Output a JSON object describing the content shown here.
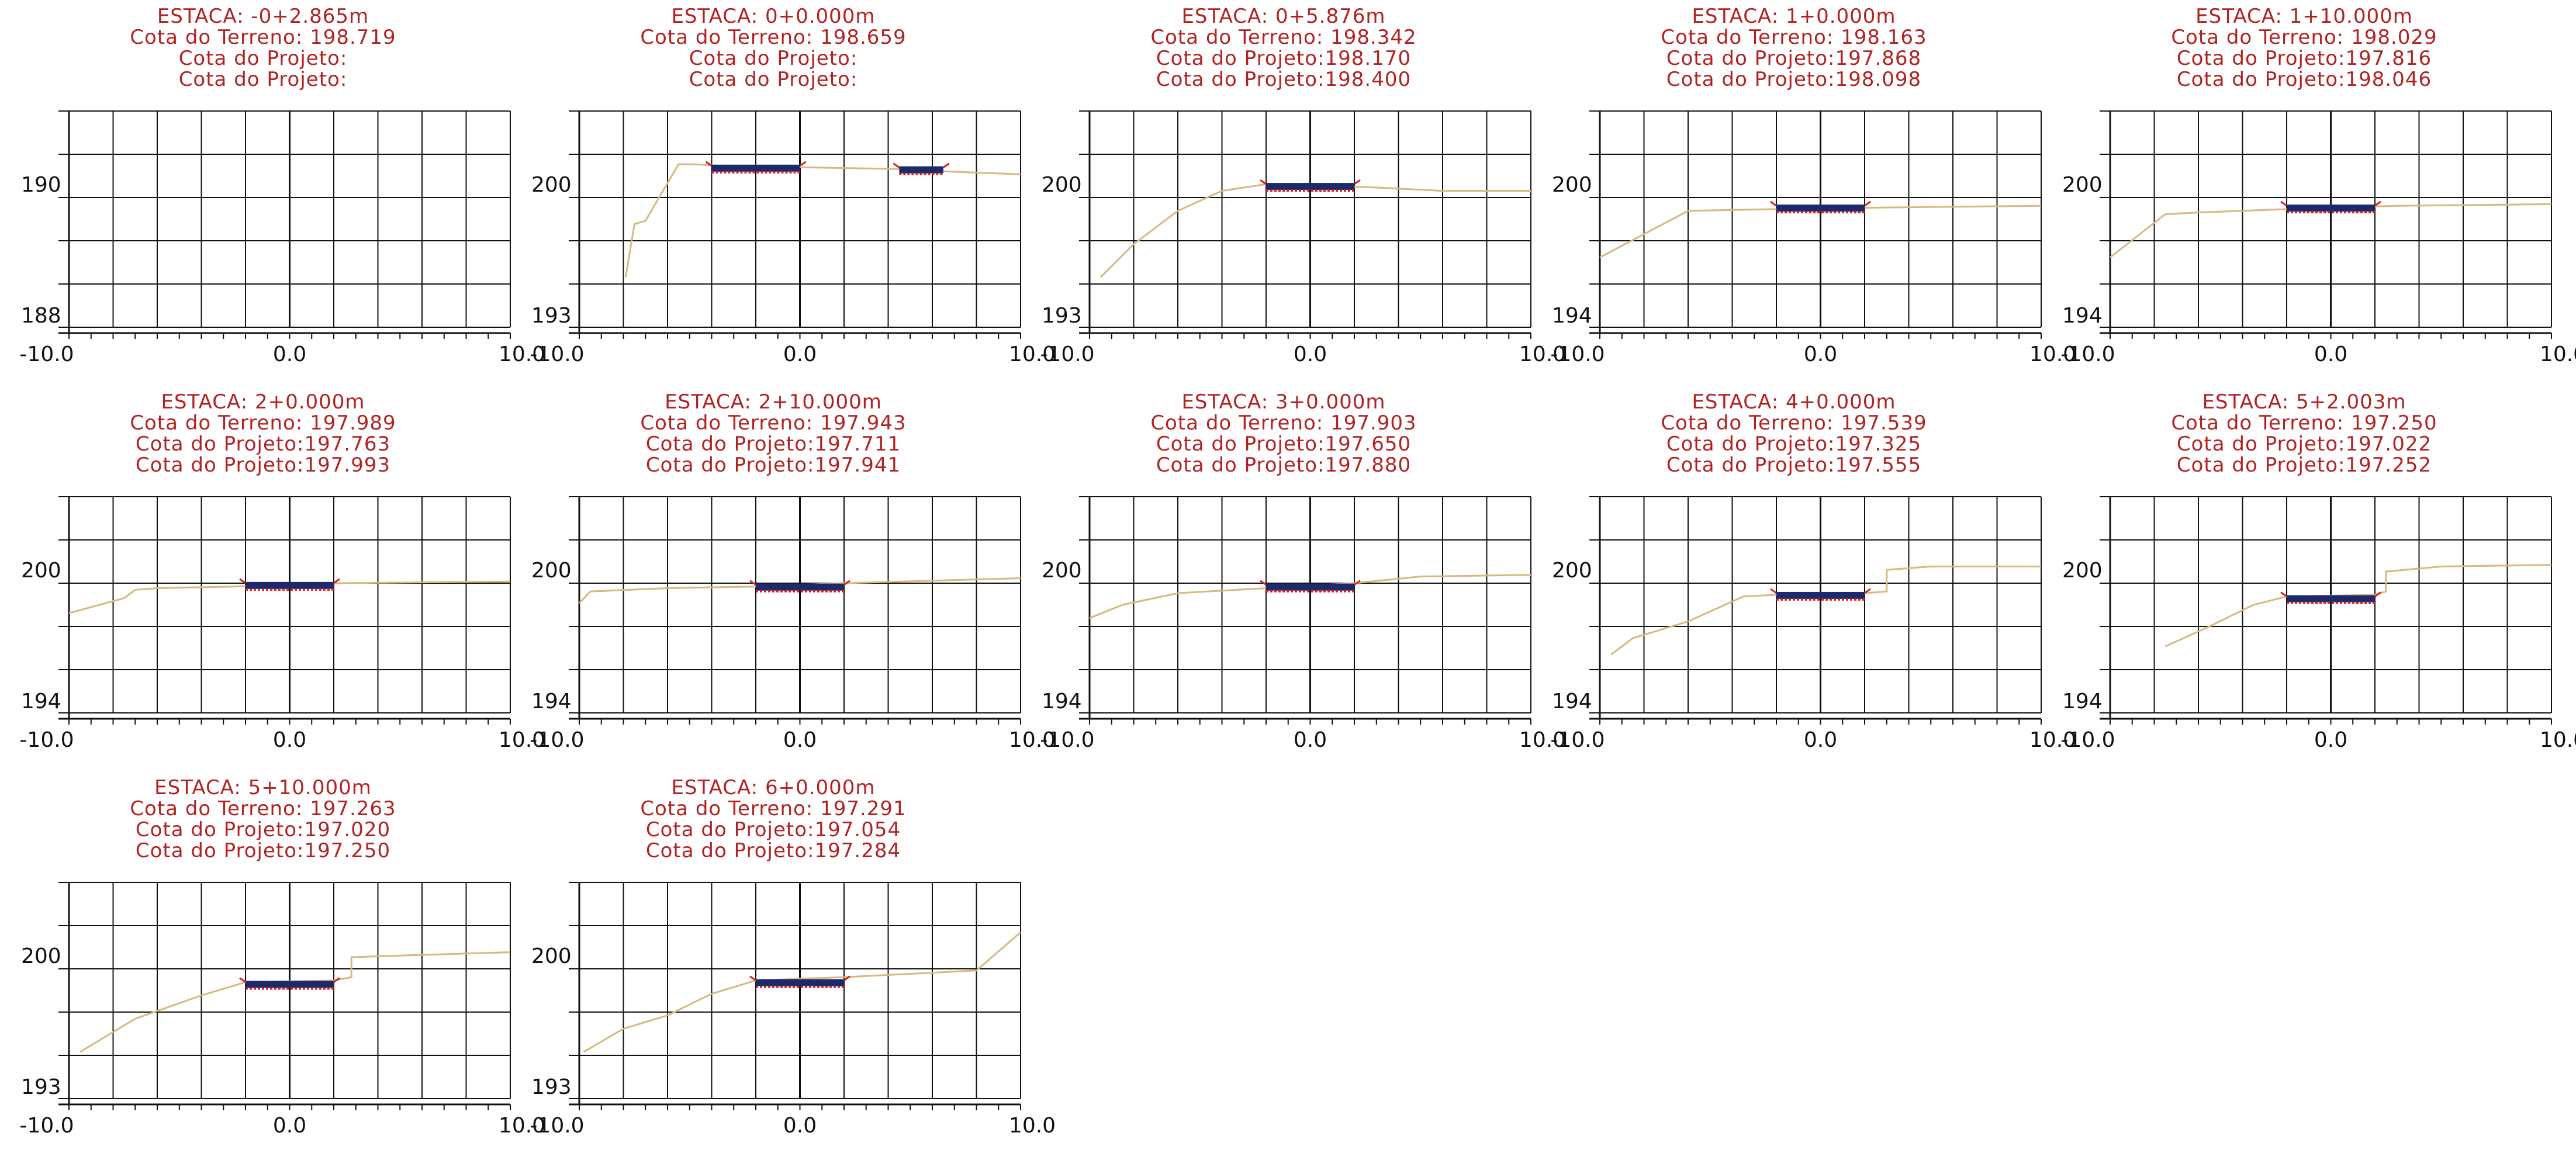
{
  "panels": [
    {
      "estaca": "ESTACA: -0+2.865m",
      "cota_terreno": "Cota do Terreno: 198.719",
      "cota_projeto_1": "Cota do Projeto:",
      "cota_projeto_2": "Cota do Projeto:",
      "y_labels": [
        "190",
        "188"
      ],
      "x_labels": [
        "-10.0",
        "0.0",
        "10.0"
      ],
      "terrain": [],
      "road": null
    },
    {
      "estaca": "ESTACA: 0+0.000m",
      "cota_terreno": "Cota do Terreno: 198.659",
      "cota_projeto_1": "Cota do Projeto:",
      "cota_projeto_2": "Cota do Projeto:",
      "y_labels": [
        "200",
        "193"
      ],
      "x_labels": [
        "-10.0",
        "0.0",
        "10.0"
      ],
      "terrain": [
        [
          -7.9,
          193.0
        ],
        [
          -7.5,
          196.2
        ],
        [
          -7.0,
          196.4
        ],
        [
          -5.5,
          199.8
        ],
        [
          -4.8,
          199.8
        ],
        [
          -3.5,
          199.7
        ],
        [
          5.0,
          199.5
        ],
        [
          6.0,
          199.4
        ],
        [
          10.0,
          199.2
        ]
      ],
      "road": {
        "x1": -4.0,
        "x2": 0.0,
        "y": 199.6,
        "extra": {
          "x1": 4.5,
          "x2": 6.5,
          "y": 199.5
        }
      }
    },
    {
      "estaca": "ESTACA: 0+5.876m",
      "cota_terreno": "Cota do Terreno: 198.342",
      "cota_projeto_1": "Cota do Projeto:198.170",
      "cota_projeto_2": "Cota do Projeto:198.400",
      "y_labels": [
        "200",
        "193"
      ],
      "x_labels": [
        "-10.0",
        "0.0",
        "10.0"
      ],
      "terrain": [
        [
          -9.5,
          193.0
        ],
        [
          -8.0,
          195.0
        ],
        [
          -6.0,
          197.0
        ],
        [
          -4.0,
          198.2
        ],
        [
          -2.0,
          198.6
        ],
        [
          3.0,
          198.4
        ],
        [
          6.0,
          198.2
        ],
        [
          10.0,
          198.2
        ]
      ],
      "road": {
        "x1": -2.0,
        "x2": 2.0,
        "y": 198.5
      }
    },
    {
      "estaca": "ESTACA: 1+0.000m",
      "cota_terreno": "Cota do Terreno: 198.163",
      "cota_projeto_1": "Cota do Projeto:197.868",
      "cota_projeto_2": "Cota do Projeto:198.098",
      "y_labels": [
        "200",
        "194"
      ],
      "x_labels": [
        "-10.0",
        "0.0",
        "10.0"
      ],
      "terrain": [
        [
          -10.0,
          194.2
        ],
        [
          -6.0,
          197.0
        ],
        [
          -2.0,
          197.1
        ],
        [
          3.0,
          197.2
        ],
        [
          10.0,
          197.3
        ]
      ],
      "road": {
        "x1": -2.0,
        "x2": 2.0,
        "y": 197.2
      }
    },
    {
      "estaca": "ESTACA: 1+10.000m",
      "cota_terreno": "Cota do Terreno: 198.029",
      "cota_projeto_1": "Cota do Projeto:197.816",
      "cota_projeto_2": "Cota do Projeto:198.046",
      "y_labels": [
        "200",
        "194"
      ],
      "x_labels": [
        "-10.0",
        "0.0",
        "10.0"
      ],
      "terrain": [
        [
          -10.0,
          194.2
        ],
        [
          -7.5,
          196.8
        ],
        [
          -6.0,
          196.9
        ],
        [
          -2.0,
          197.1
        ],
        [
          3.0,
          197.3
        ],
        [
          10.0,
          197.4
        ]
      ],
      "road": {
        "x1": -2.0,
        "x2": 2.0,
        "y": 197.2
      }
    },
    {
      "estaca": "ESTACA: 2+0.000m",
      "cota_terreno": "Cota do Terreno: 197.989",
      "cota_projeto_1": "Cota do Projeto:197.763",
      "cota_projeto_2": "Cota do Projeto:197.993",
      "y_labels": [
        "200",
        "194"
      ],
      "x_labels": [
        "-10.0",
        "0.0",
        "10.0"
      ],
      "terrain": [
        [
          -10.0,
          196.0
        ],
        [
          -7.5,
          196.9
        ],
        [
          -7.0,
          197.4
        ],
        [
          -6.0,
          197.5
        ],
        [
          -2.5,
          197.6
        ],
        [
          2.0,
          197.8
        ],
        [
          10.0,
          197.9
        ]
      ],
      "road": {
        "x1": -2.0,
        "x2": 2.0,
        "y": 197.7
      }
    },
    {
      "estaca": "ESTACA: 2+10.000m",
      "cota_terreno": "Cota do Terreno: 197.943",
      "cota_projeto_1": "Cota do Projeto:197.711",
      "cota_projeto_2": "Cota do Projeto:197.941",
      "y_labels": [
        "200",
        "194"
      ],
      "x_labels": [
        "-10.0",
        "0.0",
        "10.0"
      ],
      "terrain": [
        [
          -10.0,
          196.6
        ],
        [
          -9.5,
          197.3
        ],
        [
          -6.0,
          197.5
        ],
        [
          -2.0,
          197.6
        ],
        [
          2.0,
          197.8
        ],
        [
          10.0,
          198.1
        ]
      ],
      "road": {
        "x1": -2.0,
        "x2": 2.0,
        "y": 197.6
      }
    },
    {
      "estaca": "ESTACA: 3+0.000m",
      "cota_terreno": "Cota do Terreno: 197.903",
      "cota_projeto_1": "Cota do Projeto:197.650",
      "cota_projeto_2": "Cota do Projeto:197.880",
      "y_labels": [
        "200",
        "194"
      ],
      "x_labels": [
        "-10.0",
        "0.0",
        "10.0"
      ],
      "terrain": [
        [
          -10.0,
          195.7
        ],
        [
          -8.5,
          196.5
        ],
        [
          -6.0,
          197.2
        ],
        [
          -2.0,
          197.5
        ],
        [
          2.0,
          197.8
        ],
        [
          5.0,
          198.2
        ],
        [
          10.0,
          198.3
        ]
      ],
      "road": {
        "x1": -2.0,
        "x2": 2.0,
        "y": 197.6
      }
    },
    {
      "estaca": "ESTACA: 4+0.000m",
      "cota_terreno": "Cota do Terreno: 197.539",
      "cota_projeto_1": "Cota do Projeto:197.325",
      "cota_projeto_2": "Cota do Projeto:197.555",
      "y_labels": [
        "200",
        "194"
      ],
      "x_labels": [
        "-10.0",
        "0.0",
        "10.0"
      ],
      "terrain": [
        [
          -9.5,
          193.5
        ],
        [
          -8.5,
          194.5
        ],
        [
          -6.0,
          195.5
        ],
        [
          -3.5,
          197.0
        ],
        [
          -2.0,
          197.1
        ],
        [
          2.0,
          197.2
        ],
        [
          3.0,
          197.3
        ],
        [
          3.0,
          198.6
        ],
        [
          5.0,
          198.8
        ],
        [
          10.0,
          198.8
        ]
      ],
      "road": {
        "x1": -2.0,
        "x2": 2.0,
        "y": 197.1
      }
    },
    {
      "estaca": "ESTACA: 5+2.003m",
      "cota_terreno": "Cota do Terreno: 197.250",
      "cota_projeto_1": "Cota do Projeto:197.022",
      "cota_projeto_2": "Cota do Projeto:197.252",
      "y_labels": [
        "200",
        "194"
      ],
      "x_labels": [
        "-10.0",
        "0.0",
        "10.0"
      ],
      "terrain": [
        [
          -7.5,
          194.0
        ],
        [
          -5.5,
          195.2
        ],
        [
          -3.5,
          196.5
        ],
        [
          -2.0,
          197.0
        ],
        [
          2.0,
          197.1
        ],
        [
          2.5,
          197.3
        ],
        [
          2.5,
          198.5
        ],
        [
          5.0,
          198.8
        ],
        [
          10.0,
          198.9
        ]
      ],
      "road": {
        "x1": -2.0,
        "x2": 2.0,
        "y": 196.9
      }
    },
    {
      "estaca": "ESTACA: 5+10.000m",
      "cota_terreno": "Cota do Terreno: 197.263",
      "cota_projeto_1": "Cota do Projeto:197.020",
      "cota_projeto_2": "Cota do Projeto:197.250",
      "y_labels": [
        "200",
        "193"
      ],
      "x_labels": [
        "-10.0",
        "0.0",
        "10.0"
      ],
      "terrain": [
        [
          -9.5,
          192.8
        ],
        [
          -7.0,
          194.8
        ],
        [
          -4.0,
          196.2
        ],
        [
          -2.0,
          197.0
        ],
        [
          2.0,
          197.1
        ],
        [
          2.8,
          197.3
        ],
        [
          2.8,
          198.5
        ],
        [
          5.0,
          198.6
        ],
        [
          10.0,
          198.8
        ]
      ],
      "road": {
        "x1": -2.0,
        "x2": 2.0,
        "y": 196.9
      }
    },
    {
      "estaca": "ESTACA: 6+0.000m",
      "cota_terreno": "Cota do Terreno: 197.291",
      "cota_projeto_1": "Cota do Projeto:197.054",
      "cota_projeto_2": "Cota do Projeto:197.284",
      "y_labels": [
        "200",
        "193"
      ],
      "x_labels": [
        "-10.0",
        "0.0",
        "10.0"
      ],
      "terrain": [
        [
          -9.8,
          192.8
        ],
        [
          -8.0,
          194.2
        ],
        [
          -6.0,
          195.0
        ],
        [
          -4.0,
          196.3
        ],
        [
          -2.0,
          197.1
        ],
        [
          2.0,
          197.3
        ],
        [
          5.0,
          197.5
        ],
        [
          8.0,
          197.7
        ],
        [
          10.0,
          200.0
        ]
      ],
      "road": {
        "x1": -2.0,
        "x2": 2.0,
        "y": 197.0
      }
    }
  ],
  "colors": {
    "text": "#b22222",
    "grid": "#111111",
    "terrain": "#d8b880",
    "road_top": "#1a2a6c",
    "road_bottom": "#d42020"
  }
}
